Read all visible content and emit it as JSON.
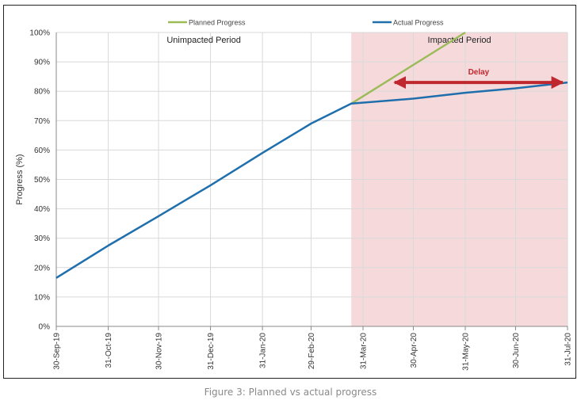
{
  "caption": "Figure 3: Planned vs actual progress",
  "chart_data": {
    "type": "line",
    "ylabel": "Progress (%)",
    "ylim": [
      0,
      100
    ],
    "yticks": [
      0,
      10,
      20,
      30,
      40,
      50,
      60,
      70,
      80,
      90,
      100
    ],
    "ytick_suffix": "%",
    "xlim": [
      "2019-09-30",
      "2020-07-31"
    ],
    "xticks": [
      {
        "date": "2019-09-30",
        "label": "30-Sep-19"
      },
      {
        "date": "2019-10-31",
        "label": "31-Oct-19"
      },
      {
        "date": "2019-11-30",
        "label": "30-Nov-19"
      },
      {
        "date": "2019-12-31",
        "label": "31-Dec-19"
      },
      {
        "date": "2020-01-31",
        "label": "31-Jan-20"
      },
      {
        "date": "2020-02-29",
        "label": "29-Feb-20"
      },
      {
        "date": "2020-03-31",
        "label": "31-Mar-20"
      },
      {
        "date": "2020-04-30",
        "label": "30-Apr-20"
      },
      {
        "date": "2020-05-31",
        "label": "31-May-20"
      },
      {
        "date": "2020-06-30",
        "label": "30-Jun-20"
      },
      {
        "date": "2020-07-31",
        "label": "31-Jul-20"
      }
    ],
    "grid": true,
    "legend_position": "top",
    "series": [
      {
        "name": "Planned Progress",
        "color": "#9bbb59",
        "points": [
          [
            "2020-03-24",
            75.8
          ],
          [
            "2020-05-31",
            100
          ]
        ]
      },
      {
        "name": "Actual Progress",
        "color": "#1f6fad",
        "points": [
          [
            "2019-09-30",
            16.5
          ],
          [
            "2019-10-31",
            27.5
          ],
          [
            "2019-11-30",
            37.5
          ],
          [
            "2019-12-31",
            48.0
          ],
          [
            "2020-01-31",
            59.0
          ],
          [
            "2020-02-29",
            69.0
          ],
          [
            "2020-03-24",
            75.8
          ],
          [
            "2020-04-30",
            77.5
          ],
          [
            "2020-05-31",
            79.5
          ],
          [
            "2020-06-30",
            81.0
          ],
          [
            "2020-07-31",
            83.0
          ]
        ]
      }
    ],
    "regions": [
      {
        "label": "Unimpacted Period",
        "from": "2019-09-30",
        "to": "2020-03-24",
        "color": "none"
      },
      {
        "label": "Impacted Period",
        "from": "2020-03-24",
        "to": "2020-07-31",
        "color": "#f6dadb"
      }
    ],
    "annotations": [
      {
        "label": "Delay",
        "from": "2020-04-16",
        "to": "2020-07-31",
        "y": 83,
        "color": "#c0282f"
      }
    ]
  }
}
